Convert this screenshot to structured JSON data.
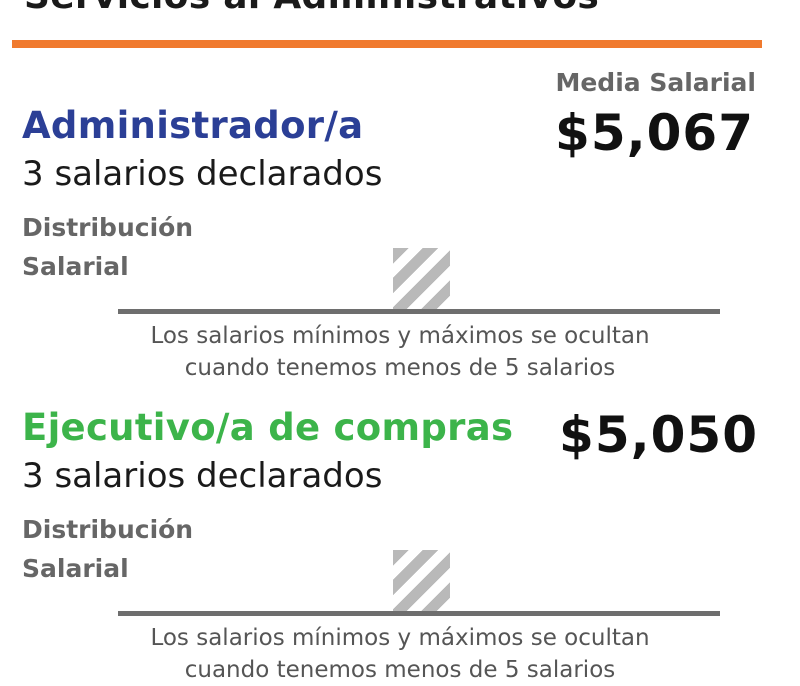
{
  "header": {
    "title": "Servicios al Administrativos"
  },
  "colors": {
    "accent": "#f07a2e",
    "title_blue": "#2b3f96",
    "title_green": "#3cb44a"
  },
  "mean_label": "Media Salarial",
  "jobs": [
    {
      "title": "Administrador/a",
      "count_text": "3 salarios declarados",
      "mean_salary": "$5,067",
      "distribution_label_line1": "Distribución",
      "distribution_label_line2": "Salarial",
      "note_line1": "Los salarios mínimos y máximos se ocultan",
      "note_line2": "cuando tenemos menos de 5 salarios"
    },
    {
      "title": "Ejecutivo/a de compras",
      "count_text": "3 salarios declarados",
      "mean_salary": "$5,050",
      "distribution_label_line1": "Distribución",
      "distribution_label_line2": "Salarial",
      "note_line1": "Los salarios mínimos y máximos se ocultan",
      "note_line2": "cuando tenemos menos de 5 salarios"
    }
  ]
}
